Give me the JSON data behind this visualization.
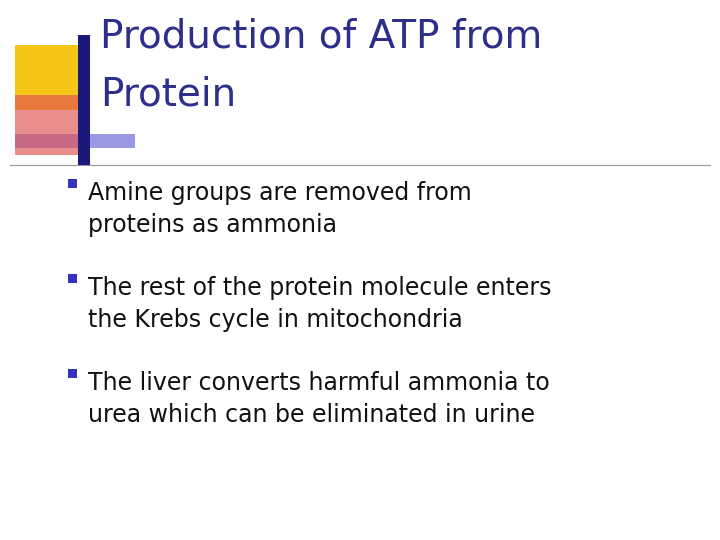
{
  "title_line1": "Production of ATP from",
  "title_line2": "Protein",
  "title_color": "#2E2E8B",
  "title_fontsize": 28,
  "background_color": "#FFFFFF",
  "bullet_points": [
    "Amine groups are removed from\nproteins as ammonia",
    "The rest of the protein molecule enters\nthe Krebs cycle in mitochondria",
    "The liver converts harmful ammonia to\nurea which can be eliminated in urine"
  ],
  "bullet_text_color": "#111111",
  "bullet_fontsize": 17,
  "bullet_marker_color": "#3333BB",
  "separator_color": "#999999",
  "deco_yellow": "#F5C518",
  "deco_red_start": "#E05050",
  "deco_blue_dark": "#1A1A7A",
  "deco_blue_light": "#4444CC"
}
